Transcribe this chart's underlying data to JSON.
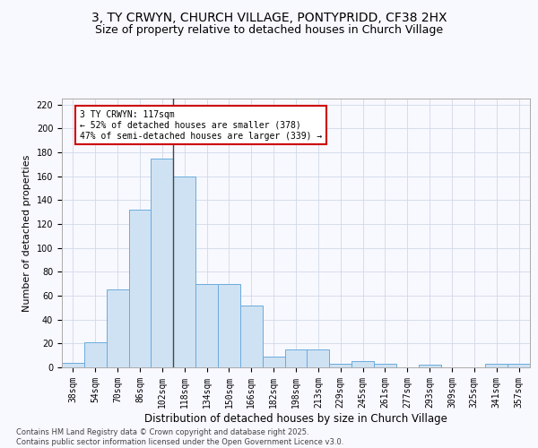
{
  "title_line1": "3, TY CRWYN, CHURCH VILLAGE, PONTYPRIDD, CF38 2HX",
  "title_line2": "Size of property relative to detached houses in Church Village",
  "xlabel": "Distribution of detached houses by size in Church Village",
  "ylabel": "Number of detached properties",
  "categories": [
    "38sqm",
    "54sqm",
    "70sqm",
    "86sqm",
    "102sqm",
    "118sqm",
    "134sqm",
    "150sqm",
    "166sqm",
    "182sqm",
    "198sqm",
    "213sqm",
    "229sqm",
    "245sqm",
    "261sqm",
    "277sqm",
    "293sqm",
    "309sqm",
    "325sqm",
    "341sqm",
    "357sqm"
  ],
  "values": [
    4,
    21,
    65,
    132,
    175,
    160,
    70,
    70,
    52,
    9,
    15,
    15,
    3,
    5,
    3,
    0,
    2,
    0,
    0,
    3,
    3
  ],
  "bar_color": "#cfe2f3",
  "bar_edge_color": "#6aabdc",
  "annotation_text": "3 TY CRWYN: 117sqm\n← 52% of detached houses are smaller (378)\n47% of semi-detached houses are larger (339) →",
  "annotation_box_color": "#ffffff",
  "annotation_box_edge": "#cc0000",
  "vline_color": "#444444",
  "vline_x_index": 4.5,
  "ylim": [
    0,
    225
  ],
  "yticks": [
    0,
    20,
    40,
    60,
    80,
    100,
    120,
    140,
    160,
    180,
    200,
    220
  ],
  "grid_color": "#d0d9e8",
  "footnote": "Contains HM Land Registry data © Crown copyright and database right 2025.\nContains public sector information licensed under the Open Government Licence v3.0.",
  "title_fontsize": 10,
  "subtitle_fontsize": 9,
  "xlabel_fontsize": 8.5,
  "ylabel_fontsize": 8,
  "tick_fontsize": 7,
  "footnote_fontsize": 6,
  "annotation_fontsize": 7
}
